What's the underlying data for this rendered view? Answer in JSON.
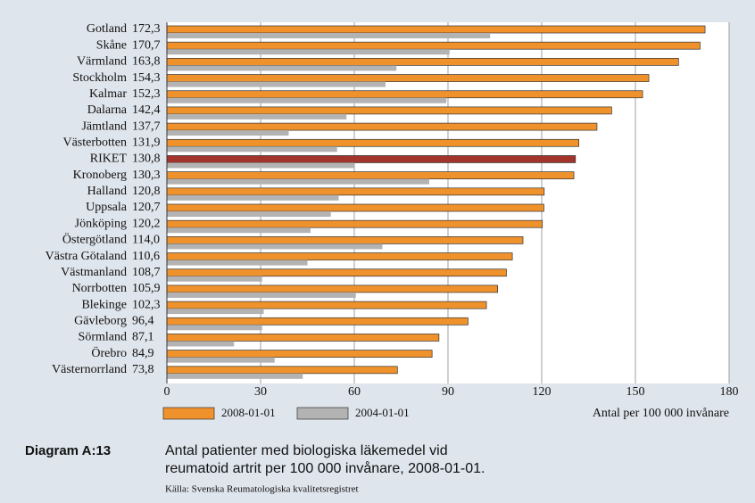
{
  "chart_data": {
    "type": "hbar",
    "categories": [
      "Gotland",
      "Skåne",
      "Värmland",
      "Stockholm",
      "Kalmar",
      "Dalarna",
      "Jämtland",
      "Västerbotten",
      "RIKET",
      "Kronoberg",
      "Halland",
      "Uppsala",
      "Jönköping",
      "Östergötland",
      "Västra Götaland",
      "Västmanland",
      "Norrbotten",
      "Blekinge",
      "Gävleborg",
      "Sörmland",
      "Örebro",
      "Västernorrland"
    ],
    "series": [
      {
        "name": "2008-01-01",
        "color": "#f0922b",
        "colors": [
          "#f0922b",
          "#f0922b",
          "#f0922b",
          "#f0922b",
          "#f0922b",
          "#f0922b",
          "#f0922b",
          "#f0922b",
          "#a3342c",
          "#f0922b",
          "#f0922b",
          "#f0922b",
          "#f0922b",
          "#f0922b",
          "#f0922b",
          "#f0922b",
          "#f0922b",
          "#f0922b",
          "#f0922b",
          "#f0922b",
          "#f0922b",
          "#f0922b"
        ],
        "values": [
          172.3,
          170.7,
          163.8,
          154.3,
          152.3,
          142.4,
          137.7,
          131.9,
          130.8,
          130.3,
          120.8,
          120.7,
          120.2,
          114.0,
          110.6,
          108.7,
          105.9,
          102.3,
          96.4,
          87.1,
          84.9,
          73.8
        ],
        "value_labels": [
          "172,3",
          "170,7",
          "163,8",
          "154,3",
          "152,3",
          "142,4",
          "137,7",
          "131,9",
          "130,8",
          "130,3",
          "120,8",
          "120,7",
          "120,2",
          "114,0",
          "110,6",
          "108,7",
          "105,9",
          "102,3",
          "96,4",
          "87,1",
          "84,9",
          "73,8"
        ]
      },
      {
        "name": "2004-01-01",
        "color": "#b3b3b3",
        "values": [
          103.5,
          90.5,
          73.5,
          70,
          89.5,
          57.5,
          39,
          54.5,
          60,
          84,
          55,
          52.5,
          46,
          69,
          45,
          30.5,
          60.5,
          31,
          30.5,
          21.5,
          34.5,
          43.5
        ]
      }
    ],
    "xlim": [
      0,
      180
    ],
    "xticks": [
      0,
      30,
      60,
      90,
      120,
      150,
      180
    ],
    "grid": true,
    "xlabel": "Antal per 100 000 invånare",
    "caption_label": "Diagram A:13",
    "caption": [
      "Antal patienter med biologiska läkemedel vid",
      "reumatoid artrit per 100 000 invånare, 2008-01-01."
    ],
    "source": "Källa: Svenska Reumatologiska kvalitetsregistret"
  }
}
